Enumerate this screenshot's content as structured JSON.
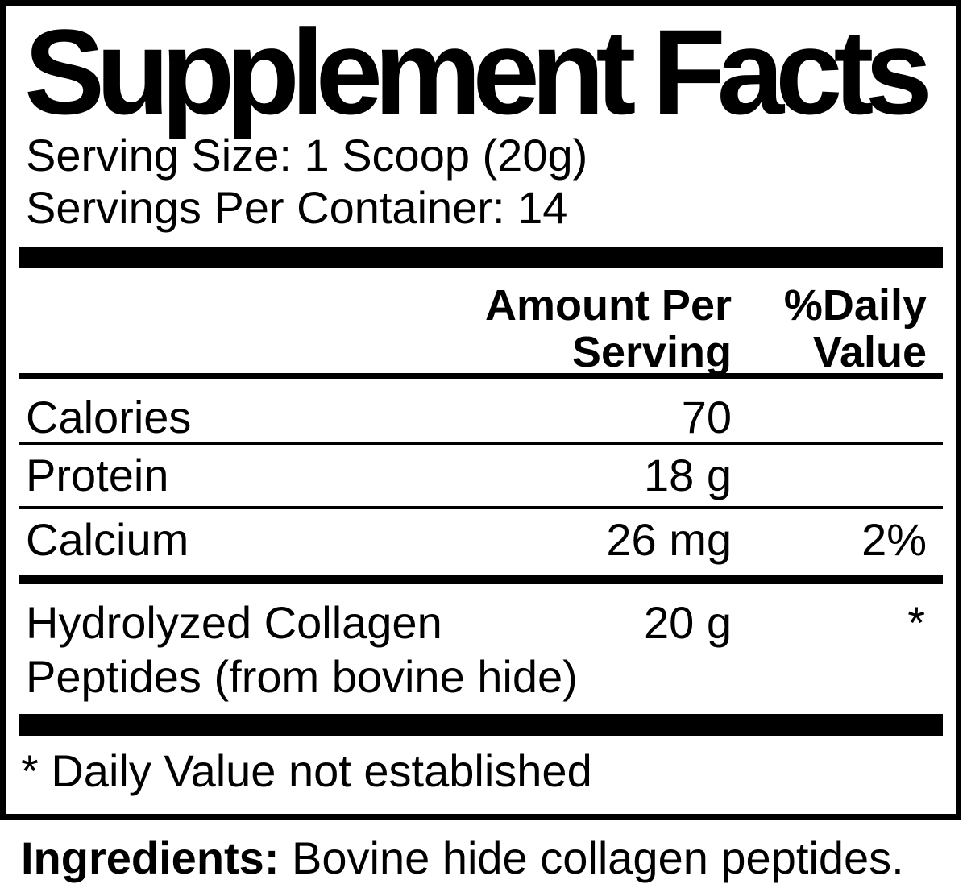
{
  "title": "Supplement Facts",
  "serving_size": "Serving Size: 1 Scoop (20g)",
  "servings_per_container": "Servings Per Container: 14",
  "header": {
    "amount_line1": "Amount Per",
    "amount_line2": "Serving",
    "dv_line1": "%Daily",
    "dv_line2": "Value"
  },
  "rows": [
    {
      "name": "Calories",
      "amount": "70",
      "dv": ""
    },
    {
      "name": "Protein",
      "amount": "18 g",
      "dv": ""
    },
    {
      "name": "Calcium",
      "amount": "26 mg",
      "dv": "2%"
    },
    {
      "name_line1": "Hydrolyzed Collagen",
      "name_line2": "Peptides (from bovine hide)",
      "amount": "20 g",
      "dv": "*"
    }
  ],
  "footnote": "* Daily Value not established",
  "ingredients": {
    "label": "Ingredients:",
    "text": "Bovine hide collagen peptides."
  }
}
